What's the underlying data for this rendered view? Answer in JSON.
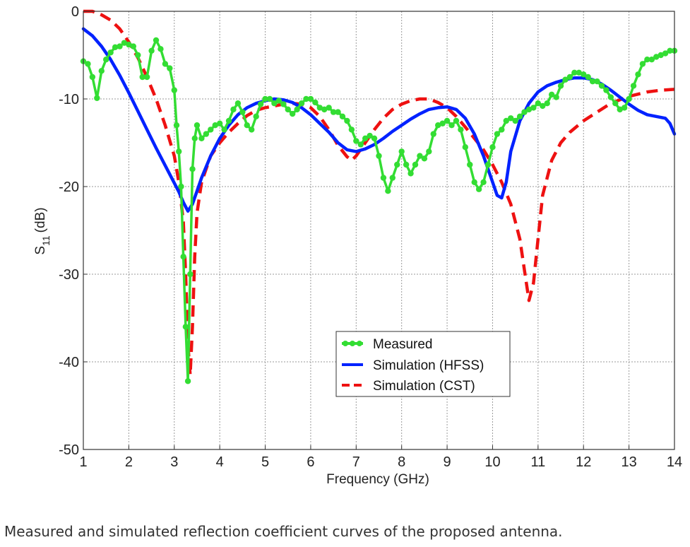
{
  "caption": "Measured and simulated reflection coefficient curves of the proposed antenna.",
  "chart_data": {
    "type": "line",
    "title": "",
    "xlabel": "Frequency (GHz)",
    "ylabel": "S",
    "ylabel_sub": "11",
    "ylabel_unit": "(dB)",
    "xlim": [
      1,
      14
    ],
    "ylim": [
      -50,
      0
    ],
    "xticks": [
      1,
      2,
      3,
      4,
      5,
      6,
      7,
      8,
      9,
      10,
      11,
      12,
      13,
      14
    ],
    "yticks": [
      0,
      -10,
      -20,
      -30,
      -40,
      -50
    ],
    "grid": true,
    "legend_position": "center-bottom",
    "series": [
      {
        "name": "Measured",
        "color": "#33dd33",
        "style": "solid-markers",
        "points": [
          [
            1.0,
            -5.7
          ],
          [
            1.1,
            -6.0
          ],
          [
            1.2,
            -7.5
          ],
          [
            1.3,
            -9.9
          ],
          [
            1.4,
            -6.8
          ],
          [
            1.5,
            -5.5
          ],
          [
            1.6,
            -4.7
          ],
          [
            1.7,
            -4.1
          ],
          [
            1.8,
            -4.0
          ],
          [
            1.9,
            -3.6
          ],
          [
            2.0,
            -3.8
          ],
          [
            2.1,
            -4.0
          ],
          [
            2.2,
            -5.0
          ],
          [
            2.3,
            -7.5
          ],
          [
            2.4,
            -7.5
          ],
          [
            2.5,
            -4.5
          ],
          [
            2.6,
            -3.3
          ],
          [
            2.7,
            -4.3
          ],
          [
            2.8,
            -6.0
          ],
          [
            2.9,
            -6.5
          ],
          [
            3.0,
            -9.0
          ],
          [
            3.05,
            -13.0
          ],
          [
            3.1,
            -16.0
          ],
          [
            3.15,
            -20.0
          ],
          [
            3.2,
            -28.0
          ],
          [
            3.25,
            -36.0
          ],
          [
            3.3,
            -42.2
          ],
          [
            3.35,
            -30.0
          ],
          [
            3.4,
            -18.0
          ],
          [
            3.45,
            -14.5
          ],
          [
            3.5,
            -13.0
          ],
          [
            3.6,
            -14.5
          ],
          [
            3.7,
            -14.0
          ],
          [
            3.8,
            -13.5
          ],
          [
            3.9,
            -13.0
          ],
          [
            4.0,
            -12.8
          ],
          [
            4.1,
            -13.5
          ],
          [
            4.2,
            -12.5
          ],
          [
            4.3,
            -11.2
          ],
          [
            4.4,
            -10.5
          ],
          [
            4.5,
            -11.5
          ],
          [
            4.6,
            -13.0
          ],
          [
            4.7,
            -13.5
          ],
          [
            4.8,
            -12.0
          ],
          [
            4.9,
            -10.6
          ],
          [
            5.0,
            -10.0
          ],
          [
            5.1,
            -10.0
          ],
          [
            5.2,
            -10.5
          ],
          [
            5.3,
            -10.2
          ],
          [
            5.4,
            -10.6
          ],
          [
            5.5,
            -11.2
          ],
          [
            5.6,
            -11.7
          ],
          [
            5.7,
            -11.2
          ],
          [
            5.8,
            -10.5
          ],
          [
            5.9,
            -10.0
          ],
          [
            6.0,
            -10.0
          ],
          [
            6.1,
            -10.4
          ],
          [
            6.2,
            -11.0
          ],
          [
            6.3,
            -11.2
          ],
          [
            6.4,
            -11.0
          ],
          [
            6.5,
            -11.5
          ],
          [
            6.6,
            -11.5
          ],
          [
            6.7,
            -12.0
          ],
          [
            6.8,
            -12.5
          ],
          [
            6.9,
            -13.5
          ],
          [
            7.0,
            -14.8
          ],
          [
            7.1,
            -15.2
          ],
          [
            7.2,
            -14.5
          ],
          [
            7.3,
            -14.2
          ],
          [
            7.4,
            -14.5
          ],
          [
            7.5,
            -16.5
          ],
          [
            7.6,
            -19.0
          ],
          [
            7.7,
            -20.5
          ],
          [
            7.8,
            -19.0
          ],
          [
            7.9,
            -17.5
          ],
          [
            8.0,
            -16.0
          ],
          [
            8.1,
            -17.5
          ],
          [
            8.2,
            -18.5
          ],
          [
            8.3,
            -17.5
          ],
          [
            8.4,
            -16.5
          ],
          [
            8.5,
            -16.8
          ],
          [
            8.6,
            -16.0
          ],
          [
            8.7,
            -14.0
          ],
          [
            8.8,
            -13.0
          ],
          [
            8.9,
            -12.8
          ],
          [
            9.0,
            -12.5
          ],
          [
            9.1,
            -13.0
          ],
          [
            9.2,
            -12.5
          ],
          [
            9.3,
            -13.5
          ],
          [
            9.4,
            -15.5
          ],
          [
            9.5,
            -17.5
          ],
          [
            9.6,
            -19.5
          ],
          [
            9.7,
            -20.3
          ],
          [
            9.8,
            -19.5
          ],
          [
            9.9,
            -17.5
          ],
          [
            10.0,
            -15.5
          ],
          [
            10.1,
            -14.0
          ],
          [
            10.2,
            -13.5
          ],
          [
            10.3,
            -12.5
          ],
          [
            10.4,
            -12.2
          ],
          [
            10.5,
            -12.5
          ],
          [
            10.6,
            -12.0
          ],
          [
            10.7,
            -11.5
          ],
          [
            10.8,
            -11.2
          ],
          [
            10.9,
            -11.0
          ],
          [
            11.0,
            -10.5
          ],
          [
            11.1,
            -10.8
          ],
          [
            11.2,
            -10.5
          ],
          [
            11.3,
            -9.5
          ],
          [
            11.4,
            -9.8
          ],
          [
            11.5,
            -8.5
          ],
          [
            11.6,
            -7.8
          ],
          [
            11.7,
            -7.5
          ],
          [
            11.8,
            -7.0
          ],
          [
            11.9,
            -7.0
          ],
          [
            12.0,
            -7.2
          ],
          [
            12.1,
            -7.5
          ],
          [
            12.2,
            -8.0
          ],
          [
            12.3,
            -8.0
          ],
          [
            12.4,
            -8.5
          ],
          [
            12.5,
            -9.0
          ],
          [
            12.6,
            -9.8
          ],
          [
            12.7,
            -10.5
          ],
          [
            12.8,
            -11.2
          ],
          [
            12.9,
            -11.0
          ],
          [
            13.0,
            -10.0
          ],
          [
            13.1,
            -8.5
          ],
          [
            13.2,
            -7.2
          ],
          [
            13.3,
            -6.0
          ],
          [
            13.4,
            -5.5
          ],
          [
            13.5,
            -5.5
          ],
          [
            13.6,
            -5.2
          ],
          [
            13.7,
            -5.0
          ],
          [
            13.8,
            -4.8
          ],
          [
            13.9,
            -4.5
          ],
          [
            14.0,
            -4.5
          ]
        ]
      },
      {
        "name": "Simulation (HFSS)",
        "color": "#0022ff",
        "style": "solid",
        "points": [
          [
            1.0,
            -2.0
          ],
          [
            1.2,
            -2.8
          ],
          [
            1.4,
            -4.0
          ],
          [
            1.6,
            -5.5
          ],
          [
            1.8,
            -7.3
          ],
          [
            2.0,
            -9.3
          ],
          [
            2.2,
            -11.4
          ],
          [
            2.4,
            -13.5
          ],
          [
            2.6,
            -15.6
          ],
          [
            2.8,
            -17.6
          ],
          [
            3.0,
            -19.6
          ],
          [
            3.1,
            -20.6
          ],
          [
            3.2,
            -21.8
          ],
          [
            3.3,
            -22.8
          ],
          [
            3.4,
            -22.0
          ],
          [
            3.5,
            -20.5
          ],
          [
            3.6,
            -19.0
          ],
          [
            3.8,
            -16.5
          ],
          [
            4.0,
            -14.5
          ],
          [
            4.2,
            -13.0
          ],
          [
            4.4,
            -11.8
          ],
          [
            4.6,
            -11.0
          ],
          [
            4.8,
            -10.5
          ],
          [
            5.0,
            -10.2
          ],
          [
            5.2,
            -10.0
          ],
          [
            5.4,
            -10.1
          ],
          [
            5.6,
            -10.4
          ],
          [
            5.8,
            -11.0
          ],
          [
            6.0,
            -11.8
          ],
          [
            6.2,
            -12.8
          ],
          [
            6.4,
            -13.8
          ],
          [
            6.6,
            -15.0
          ],
          [
            6.8,
            -15.8
          ],
          [
            7.0,
            -16.0
          ],
          [
            7.2,
            -15.7
          ],
          [
            7.4,
            -15.2
          ],
          [
            7.6,
            -14.5
          ],
          [
            7.8,
            -13.7
          ],
          [
            8.0,
            -13.0
          ],
          [
            8.2,
            -12.3
          ],
          [
            8.4,
            -11.7
          ],
          [
            8.6,
            -11.2
          ],
          [
            8.8,
            -11.0
          ],
          [
            9.0,
            -10.9
          ],
          [
            9.2,
            -11.2
          ],
          [
            9.4,
            -12.2
          ],
          [
            9.6,
            -14.0
          ],
          [
            9.8,
            -16.5
          ],
          [
            10.0,
            -19.5
          ],
          [
            10.1,
            -21.0
          ],
          [
            10.2,
            -21.3
          ],
          [
            10.3,
            -19.5
          ],
          [
            10.4,
            -16.0
          ],
          [
            10.6,
            -12.5
          ],
          [
            10.8,
            -10.5
          ],
          [
            11.0,
            -9.2
          ],
          [
            11.2,
            -8.5
          ],
          [
            11.4,
            -8.1
          ],
          [
            11.6,
            -7.8
          ],
          [
            11.8,
            -7.6
          ],
          [
            12.0,
            -7.6
          ],
          [
            12.2,
            -7.8
          ],
          [
            12.4,
            -8.3
          ],
          [
            12.6,
            -9.0
          ],
          [
            12.8,
            -9.8
          ],
          [
            13.0,
            -10.6
          ],
          [
            13.2,
            -11.3
          ],
          [
            13.4,
            -11.8
          ],
          [
            13.6,
            -12.0
          ],
          [
            13.8,
            -12.2
          ],
          [
            13.9,
            -12.8
          ],
          [
            14.0,
            -14.0
          ]
        ]
      },
      {
        "name": "Simulation (CST)",
        "color": "#ee1111",
        "style": "dashed",
        "points": [
          [
            1.0,
            0.0
          ],
          [
            1.2,
            0.0
          ],
          [
            1.4,
            -0.4
          ],
          [
            1.6,
            -1.0
          ],
          [
            1.8,
            -2.0
          ],
          [
            2.0,
            -3.5
          ],
          [
            2.2,
            -5.3
          ],
          [
            2.4,
            -7.5
          ],
          [
            2.6,
            -10.0
          ],
          [
            2.8,
            -13.0
          ],
          [
            3.0,
            -16.5
          ],
          [
            3.1,
            -19.5
          ],
          [
            3.2,
            -24.0
          ],
          [
            3.25,
            -30.0
          ],
          [
            3.3,
            -38.0
          ],
          [
            3.35,
            -41.5
          ],
          [
            3.4,
            -36.0
          ],
          [
            3.45,
            -28.0
          ],
          [
            3.5,
            -23.0
          ],
          [
            3.6,
            -19.5
          ],
          [
            3.8,
            -16.5
          ],
          [
            4.0,
            -15.0
          ],
          [
            4.2,
            -13.8
          ],
          [
            4.4,
            -12.8
          ],
          [
            4.6,
            -11.9
          ],
          [
            4.8,
            -11.3
          ],
          [
            5.0,
            -11.0
          ],
          [
            5.2,
            -10.8
          ],
          [
            5.4,
            -10.6
          ],
          [
            5.6,
            -10.5
          ],
          [
            5.8,
            -10.6
          ],
          [
            6.0,
            -11.0
          ],
          [
            6.2,
            -12.0
          ],
          [
            6.4,
            -13.5
          ],
          [
            6.6,
            -15.3
          ],
          [
            6.8,
            -16.6
          ],
          [
            6.9,
            -17.0
          ],
          [
            7.0,
            -16.5
          ],
          [
            7.2,
            -15.0
          ],
          [
            7.4,
            -13.5
          ],
          [
            7.6,
            -12.2
          ],
          [
            7.8,
            -11.2
          ],
          [
            8.0,
            -10.6
          ],
          [
            8.2,
            -10.2
          ],
          [
            8.4,
            -10.0
          ],
          [
            8.6,
            -10.0
          ],
          [
            8.8,
            -10.4
          ],
          [
            9.0,
            -11.0
          ],
          [
            9.2,
            -12.0
          ],
          [
            9.4,
            -13.2
          ],
          [
            9.6,
            -14.5
          ],
          [
            9.8,
            -15.8
          ],
          [
            10.0,
            -17.5
          ],
          [
            10.2,
            -19.5
          ],
          [
            10.4,
            -22.0
          ],
          [
            10.6,
            -26.0
          ],
          [
            10.7,
            -29.5
          ],
          [
            10.8,
            -33.0
          ],
          [
            10.9,
            -31.0
          ],
          [
            11.0,
            -26.0
          ],
          [
            11.1,
            -21.0
          ],
          [
            11.3,
            -17.0
          ],
          [
            11.5,
            -15.0
          ],
          [
            11.7,
            -13.8
          ],
          [
            12.0,
            -12.5
          ],
          [
            12.3,
            -11.5
          ],
          [
            12.6,
            -10.5
          ],
          [
            13.0,
            -9.7
          ],
          [
            13.4,
            -9.2
          ],
          [
            13.7,
            -9.0
          ],
          [
            14.0,
            -8.9
          ]
        ]
      }
    ]
  }
}
